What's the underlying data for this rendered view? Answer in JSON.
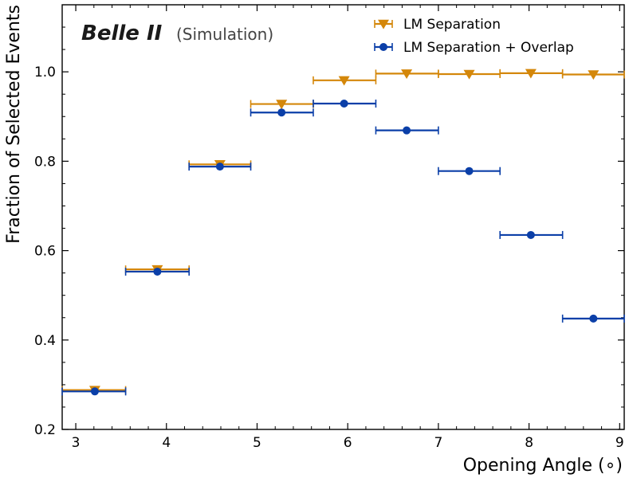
{
  "chart_data": {
    "type": "scatter",
    "title": "",
    "annotation": {
      "experiment": "Belle II",
      "qualifier": "(Simulation)"
    },
    "xlabel": "Opening Angle (∘)",
    "ylabel": "Fraction of Selected Events",
    "xlim": [
      2.85,
      9.05
    ],
    "ylim": [
      0.2,
      1.15
    ],
    "xticks": [
      "3",
      "4",
      "5",
      "6",
      "7",
      "8",
      "9"
    ],
    "yticks": [
      "0.2",
      "0.4",
      "0.6",
      "0.8",
      "1.0"
    ],
    "legend_position": "top-right",
    "bin_edges": [
      2.85,
      3.55,
      4.25,
      4.93,
      5.62,
      6.31,
      7.0,
      7.68,
      8.37,
      9.05
    ],
    "series": [
      {
        "name": "LM Separation",
        "marker": "triangle-down",
        "color": "#d4870a",
        "x": [
          3.21,
          3.9,
          4.59,
          5.27,
          5.96,
          6.65,
          7.34,
          8.02,
          8.71
        ],
        "values": [
          0.288,
          0.558,
          0.793,
          0.928,
          0.981,
          0.996,
          0.995,
          0.997,
          0.994
        ]
      },
      {
        "name": "LM Separation + Overlap",
        "marker": "circle",
        "color": "#0b3fa8",
        "x": [
          3.21,
          3.9,
          4.59,
          5.27,
          5.96,
          6.65,
          7.34,
          8.02,
          8.71
        ],
        "values": [
          0.285,
          0.553,
          0.788,
          0.909,
          0.929,
          0.869,
          0.778,
          0.635,
          0.448
        ]
      }
    ]
  }
}
